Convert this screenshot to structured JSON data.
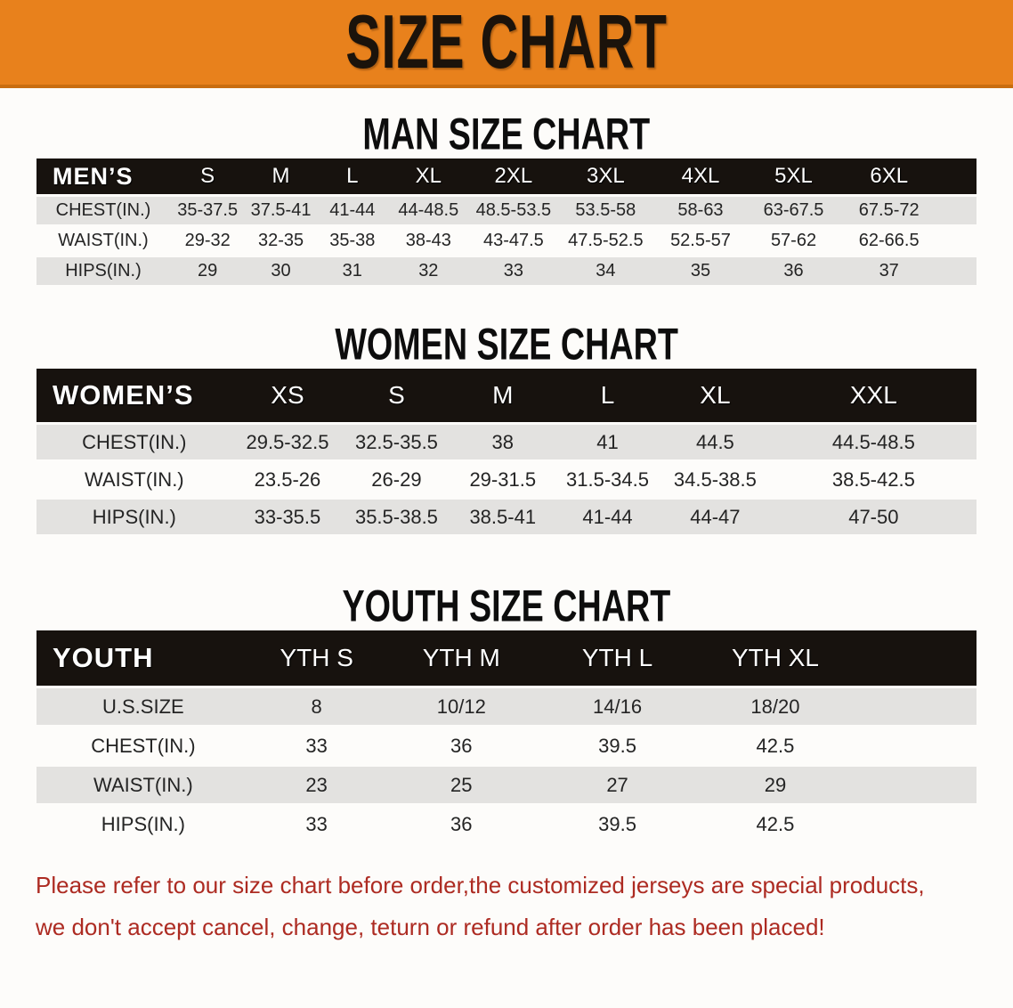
{
  "banner": {
    "title": "SIZE CHART",
    "bg_color": "#E8811C",
    "text_color": "#1B130B"
  },
  "sections": [
    {
      "id": "men",
      "heading": "MAN SIZE CHART",
      "table": {
        "label_header": "MEN’S",
        "size_headers": [
          "S",
          "M",
          "L",
          "XL",
          "2XL",
          "3XL",
          "4XL",
          "5XL",
          "6XL"
        ],
        "rows": [
          {
            "label": "CHEST(IN.)",
            "values": [
              "35-37.5",
              "37.5-41",
              "41-44",
              "44-48.5",
              "48.5-53.5",
              "53.5-58",
              "58-63",
              "63-67.5",
              "67.5-72"
            ]
          },
          {
            "label": "WAIST(IN.)",
            "values": [
              "29-32",
              "32-35",
              "35-38",
              "38-43",
              "43-47.5",
              "47.5-52.5",
              "52.5-57",
              "57-62",
              "62-66.5"
            ]
          },
          {
            "label": "HIPS(IN.)",
            "values": [
              "29",
              "30",
              "31",
              "32",
              "33",
              "34",
              "35",
              "36",
              "37"
            ]
          }
        ]
      }
    },
    {
      "id": "women",
      "heading": "WOMEN SIZE CHART",
      "table": {
        "label_header": "WOMEN’S",
        "size_headers": [
          "XS",
          "S",
          "M",
          "L",
          "XL",
          "XXL"
        ],
        "rows": [
          {
            "label": "CHEST(IN.)",
            "values": [
              "29.5-32.5",
              "32.5-35.5",
              "38",
              "41",
              "44.5",
              "44.5-48.5"
            ]
          },
          {
            "label": "WAIST(IN.)",
            "values": [
              "23.5-26",
              "26-29",
              "29-31.5",
              "31.5-34.5",
              "34.5-38.5",
              "38.5-42.5"
            ]
          },
          {
            "label": "HIPS(IN.)",
            "values": [
              "33-35.5",
              "35.5-38.5",
              "38.5-41",
              "41-44",
              "44-47",
              "47-50"
            ]
          }
        ]
      }
    },
    {
      "id": "youth",
      "heading": "YOUTH SIZE CHART",
      "table": {
        "label_header": "YOUTH",
        "size_headers": [
          "YTH S",
          "YTH M",
          "YTH L",
          "YTH XL"
        ],
        "rows": [
          {
            "label": "U.S.SIZE",
            "values": [
              "8",
              "10/12",
              "14/16",
              "18/20"
            ]
          },
          {
            "label": "CHEST(IN.)",
            "values": [
              "33",
              "36",
              "39.5",
              "42.5"
            ]
          },
          {
            "label": "WAIST(IN.)",
            "values": [
              "23",
              "25",
              "27",
              "29"
            ]
          },
          {
            "label": "HIPS(IN.)",
            "values": [
              "33",
              "36",
              "39.5",
              "42.5"
            ]
          }
        ]
      }
    }
  ],
  "disclaimer": {
    "line1": "Please refer to our size chart before order,the customized jerseys are special products,",
    "line2": "we don't accept cancel, change, teturn or refund after order has been placed!",
    "text_color": "#AD2B22"
  },
  "colors": {
    "table_header_bg": "#17120E",
    "table_header_text": "#FFFFFF",
    "row_stripe_gray": "#E3E2E0",
    "page_background": "#FDFCFA"
  }
}
